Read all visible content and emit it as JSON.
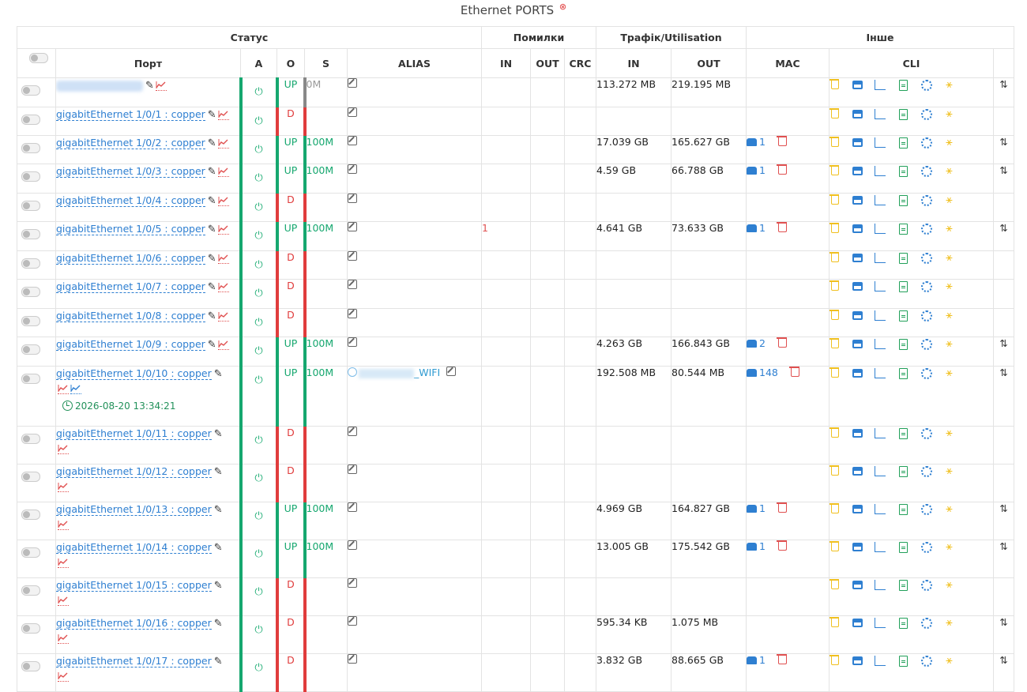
{
  "page_title": "Ethernet PORTS",
  "close_glyph": "⊗",
  "groups": {
    "status": "Статус",
    "errors": "Помилки",
    "traffic": "Трафік/Utilisation",
    "other": "Інше"
  },
  "columns": {
    "port": "Порт",
    "a": "A",
    "o": "O",
    "s": "S",
    "alias": "ALIAS",
    "err_in": "IN",
    "err_out": "OUT",
    "crc": "CRC",
    "tr_in": "IN",
    "tr_out": "OUT",
    "mac": "MAC",
    "cli": "CLI"
  },
  "rows": [
    {
      "name": "",
      "oper": "UP",
      "speed": "0M",
      "speed_style": "grey",
      "err_in": "",
      "in": "113.272 MB",
      "out": "219.195 MB",
      "mac": "",
      "arrows": "⇅",
      "blurred": true
    },
    {
      "name": "gigabitEthernet 1/0/1 : copper",
      "oper": "D",
      "speed": "",
      "speed_style": "red",
      "err_in": "",
      "in": "",
      "out": "",
      "mac": "",
      "arrows": ""
    },
    {
      "name": "gigabitEthernet 1/0/2 : copper",
      "oper": "UP",
      "speed": "100M",
      "speed_style": "green",
      "err_in": "",
      "in": "17.039 GB",
      "out": "165.627 GB",
      "mac": "1",
      "arrows": "⇅"
    },
    {
      "name": "gigabitEthernet 1/0/3 : copper",
      "oper": "UP",
      "speed": "100M",
      "speed_style": "green",
      "err_in": "",
      "in": "4.59 GB",
      "out": "66.788 GB",
      "mac": "1",
      "arrows": "⇅"
    },
    {
      "name": "gigabitEthernet 1/0/4 : copper",
      "oper": "D",
      "speed": "",
      "speed_style": "red",
      "err_in": "",
      "in": "",
      "out": "",
      "mac": "",
      "arrows": ""
    },
    {
      "name": "gigabitEthernet 1/0/5 : copper",
      "oper": "UP",
      "speed": "100M",
      "speed_style": "green",
      "err_in": "1",
      "in": "4.641 GB",
      "out": "73.633 GB",
      "mac": "1",
      "arrows": "⇅"
    },
    {
      "name": "gigabitEthernet 1/0/6 : copper",
      "oper": "D",
      "speed": "",
      "speed_style": "red",
      "err_in": "",
      "in": "",
      "out": "",
      "mac": "",
      "arrows": ""
    },
    {
      "name": "gigabitEthernet 1/0/7 : copper",
      "oper": "D",
      "speed": "",
      "speed_style": "red",
      "err_in": "",
      "in": "",
      "out": "",
      "mac": "",
      "arrows": ""
    },
    {
      "name": "gigabitEthernet 1/0/8 : copper",
      "oper": "D",
      "speed": "",
      "speed_style": "red",
      "err_in": "",
      "in": "",
      "out": "",
      "mac": "",
      "arrows": ""
    },
    {
      "name": "gigabitEthernet 1/0/9 : copper",
      "oper": "UP",
      "speed": "100M",
      "speed_style": "green",
      "err_in": "",
      "in": "4.263 GB",
      "out": "166.843 GB",
      "mac": "2",
      "arrows": "⇅"
    },
    {
      "name": "gigabitEthernet 1/0/10 : copper",
      "oper": "UP",
      "speed": "100M",
      "speed_style": "green",
      "err_in": "",
      "in": "192.508 MB",
      "out": "80.544 MB",
      "mac": "148",
      "arrows": "⇅",
      "alias": "_WIFI",
      "last_change": "2026-08-20 13:34:21"
    },
    {
      "name": "gigabitEthernet 1/0/11 : copper",
      "oper": "D",
      "speed": "",
      "speed_style": "red",
      "err_in": "",
      "in": "",
      "out": "",
      "mac": "",
      "arrows": ""
    },
    {
      "name": "gigabitEthernet 1/0/12 : copper",
      "oper": "D",
      "speed": "",
      "speed_style": "red",
      "err_in": "",
      "in": "",
      "out": "",
      "mac": "",
      "arrows": ""
    },
    {
      "name": "gigabitEthernet 1/0/13 : copper",
      "oper": "UP",
      "speed": "100M",
      "speed_style": "green",
      "err_in": "",
      "in": "4.969 GB",
      "out": "164.827 GB",
      "mac": "1",
      "arrows": "⇅"
    },
    {
      "name": "gigabitEthernet 1/0/14 : copper",
      "oper": "UP",
      "speed": "100M",
      "speed_style": "green",
      "err_in": "",
      "in": "13.005 GB",
      "out": "175.542 GB",
      "mac": "1",
      "arrows": "⇅"
    },
    {
      "name": "gigabitEthernet 1/0/15 : copper",
      "oper": "D",
      "speed": "",
      "speed_style": "red",
      "err_in": "",
      "in": "",
      "out": "",
      "mac": "",
      "arrows": ""
    },
    {
      "name": "gigabitEthernet 1/0/16 : copper",
      "oper": "D",
      "speed": "",
      "speed_style": "red",
      "err_in": "",
      "in": "595.34 KB",
      "out": "1.075 MB",
      "mac": "",
      "arrows": "⇅"
    },
    {
      "name": "gigabitEthernet 1/0/17 : copper",
      "oper": "D",
      "speed": "",
      "speed_style": "red",
      "err_in": "",
      "in": "3.832 GB",
      "out": "88.665 GB",
      "mac": "1",
      "arrows": "⇅"
    }
  ],
  "colors": {
    "up_green": "#16a76f",
    "down_red": "#e03c3c",
    "link_blue": "#2e7fd1",
    "cli_yellow": "#f0c020"
  },
  "icons": {
    "edit": "pencil-icon",
    "graph": "traffic-graph-icon",
    "power": "power-icon",
    "alias_edit": "edit-square-icon",
    "mac": "mac-table-icon",
    "delete": "trash-icon",
    "cli": [
      "trash-icon",
      "monitor-icon",
      "chart-icon",
      "document-icon",
      "gear-icon",
      "sync-icon"
    ]
  }
}
